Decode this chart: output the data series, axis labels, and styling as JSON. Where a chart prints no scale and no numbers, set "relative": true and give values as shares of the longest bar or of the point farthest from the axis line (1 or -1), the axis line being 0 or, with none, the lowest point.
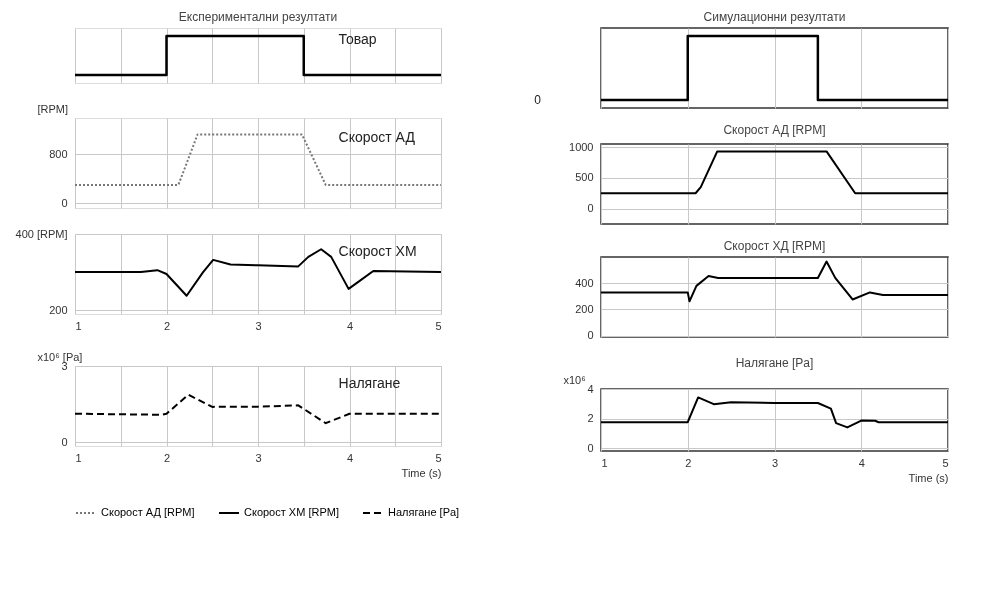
{
  "chart_data": [
    {
      "type": "step",
      "title": "Експериментални резултати",
      "relative": true,
      "x": [
        1,
        2,
        3.5,
        5
      ],
      "values": [
        0,
        1,
        0,
        0
      ],
      "color": "#000000",
      "xlim": [
        1,
        5
      ],
      "xticks": [
        1,
        {
          "value": 1.5,
          "label": null
        },
        2,
        {
          "value": 2.5,
          "label": null
        },
        3,
        {
          "value": 3.5,
          "label": null
        },
        4,
        {
          "value": 4.5,
          "label": null
        },
        5
      ],
      "grid": "x",
      "tick_labels": false,
      "line_style": "solid",
      "annotations": [
        "Товар"
      ]
    },
    {
      "type": "line",
      "ylabel": "[RPM]",
      "x": [
        1,
        2.13,
        2.34,
        3.48,
        3.74,
        5
      ],
      "series": [
        {
          "name": "Скорост АД [RPM]",
          "color": "#777777",
          "values": [
            300,
            300,
            1130,
            1130,
            300,
            300
          ]
        }
      ],
      "line_style": "dotted",
      "xlim": [
        1,
        5
      ],
      "xticks": [
        1,
        {
          "value": 1.5,
          "label": null
        },
        2,
        {
          "value": 2.5,
          "label": null
        },
        3,
        {
          "value": 3.5,
          "label": null
        },
        4,
        {
          "value": 4.5,
          "label": null
        },
        5
      ],
      "ylim": [
        -80,
        1400
      ],
      "yticks": [
        0,
        800
      ],
      "grid": true,
      "tick_labels": "y",
      "legend": "bottom",
      "annotations": [
        "Скорост АД"
      ]
    },
    {
      "type": "line",
      "x": [
        1,
        1.72,
        1.9,
        2.0,
        2.22,
        2.4,
        2.51,
        2.7,
        3.0,
        3.44,
        3.55,
        3.69,
        3.8,
        3.99,
        4.1,
        4.26,
        5
      ],
      "series": [
        {
          "name": "Скорост ХМ [RPM]",
          "color": "#000000",
          "values": [
            300,
            300,
            305,
            295,
            238,
            300,
            332,
            320,
            318,
            315,
            340,
            360,
            340,
            256,
            275,
            303,
            300
          ]
        }
      ],
      "line_style": "solid",
      "xlim": [
        1,
        5
      ],
      "xticks": [
        1,
        {
          "value": 1.5,
          "label": null
        },
        2,
        {
          "value": 2.5,
          "label": null
        },
        3,
        {
          "value": 3.5,
          "label": null
        },
        4,
        {
          "value": 4.5,
          "label": null
        },
        5
      ],
      "ylim": [
        190,
        400
      ],
      "yticks": [
        200,
        {
          "value": 400,
          "label": "400 [RPM]"
        }
      ],
      "grid": true,
      "legend": "bottom",
      "annotations": [
        "Скорост ХМ"
      ]
    },
    {
      "type": "line",
      "xlabel": "Time (s)",
      "x": [
        1,
        1.95,
        2.0,
        2.24,
        2.5,
        3.0,
        3.44,
        3.74,
        4.0,
        5
      ],
      "series": [
        {
          "name": "Налягане [Pa]",
          "color": "#000000",
          "values": [
            1.12,
            1.08,
            1.12,
            1.87,
            1.39,
            1.4,
            1.45,
            0.75,
            1.12,
            1.12
          ]
        }
      ],
      "line_style": "dashed",
      "xlim": [
        1,
        5
      ],
      "xticks": [
        1,
        {
          "value": 1.5,
          "label": null
        },
        2,
        {
          "value": 2.5,
          "label": null
        },
        3,
        {
          "value": 3.5,
          "label": null
        },
        4,
        {
          "value": 4.5,
          "label": null
        },
        5
      ],
      "ylim": [
        -0.15,
        3
      ],
      "yticks": [
        0,
        3
      ],
      "ylabel": "x10⁶ [Pa]",
      "grid": true,
      "legend": "bottom",
      "annotations": [
        "Налягане"
      ]
    },
    {
      "type": "step",
      "title": "Симулационни резултати",
      "relative": true,
      "x": [
        1,
        2,
        3.5,
        5
      ],
      "values": [
        0,
        1,
        0,
        0
      ],
      "color": "#000000",
      "xlim": [
        1,
        5
      ],
      "xticks": [
        1,
        2,
        3,
        4,
        5
      ],
      "grid": "x",
      "tick_labels": false,
      "line_style": "solid",
      "ylabel": "0"
    },
    {
      "type": "line",
      "title": "Скорост АД [RPM]",
      "x": [
        1,
        2.09,
        2.15,
        2.34,
        3.6,
        3.93,
        5
      ],
      "values": [
        250,
        250,
        350,
        930,
        930,
        250,
        250
      ],
      "color": "#000000",
      "xlim": [
        1,
        5
      ],
      "xticks": [
        1,
        2,
        3,
        4,
        5
      ],
      "ylim": [
        -250,
        1050
      ],
      "yticks": [
        0,
        500,
        1000
      ],
      "grid": true,
      "tick_labels": "y",
      "line_style": "solid"
    },
    {
      "type": "line",
      "title": "Скорост ХД [RPM]",
      "x": [
        1,
        2.0,
        2.02,
        2.1,
        2.24,
        2.35,
        3.5,
        3.6,
        3.7,
        3.9,
        4.1,
        4.25,
        5
      ],
      "values": [
        330,
        330,
        262,
        380,
        455,
        440,
        440,
        565,
        441,
        276,
        330,
        310,
        310
      ],
      "color": "#000000",
      "xlim": [
        1,
        5
      ],
      "xticks": [
        1,
        2,
        3,
        4,
        5
      ],
      "ylim": [
        -10,
        600
      ],
      "yticks": [
        0,
        200,
        400
      ],
      "grid": true,
      "tick_labels": "y",
      "line_style": "solid"
    },
    {
      "type": "line",
      "title": "Налягане [Pa]",
      "ylabel": "x10⁶",
      "xlabel": "Time (s)",
      "x": [
        1,
        2.0,
        2.12,
        2.3,
        2.5,
        3.0,
        3.5,
        3.65,
        3.71,
        3.84,
        4.0,
        4.16,
        4.2,
        5
      ],
      "values": [
        1.75,
        1.75,
        3.43,
        2.97,
        3.1,
        3.05,
        3.05,
        2.67,
        1.69,
        1.4,
        1.86,
        1.85,
        1.75,
        1.75
      ],
      "color": "#000000",
      "xlim": [
        1,
        5
      ],
      "xticks": [
        1,
        2,
        3,
        4,
        5
      ],
      "ylim": [
        -0.2,
        4
      ],
      "yticks": [
        0,
        2,
        4
      ],
      "grid": true,
      "line_style": "solid"
    }
  ]
}
